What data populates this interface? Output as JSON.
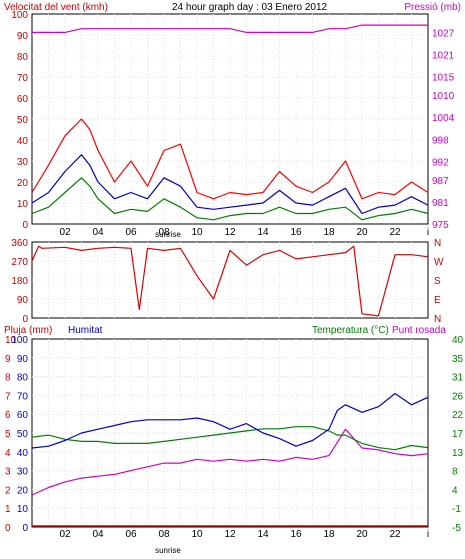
{
  "chart_data": [
    {
      "type": "line",
      "title": "24 hour graph day : 03 Enero 2012",
      "ylabel_left": "Velocitat del vent (kmh)",
      "ylabel_right": "Pressió (mb)",
      "x_ticks": [
        "02",
        "04",
        "06",
        "08",
        "10",
        "12",
        "14",
        "16",
        "18",
        "20",
        "22",
        "i"
      ],
      "x_annotation": "sunrise",
      "ylim_left": [
        0,
        100
      ],
      "yticks_left": [
        "0",
        "10",
        "20",
        "30",
        "40",
        "50",
        "60",
        "70",
        "80",
        "90",
        "100"
      ],
      "ylim_right": [
        975,
        1032
      ],
      "yticks_right": [
        "975",
        "981",
        "987",
        "992",
        "998",
        "1004",
        "1010",
        "1015",
        "1021",
        "1027"
      ],
      "grid": true,
      "colors": {
        "gust": "#ff0000",
        "average": "#0000cc",
        "speed": "#008000",
        "pressure": "#cc00cc",
        "axis_left": "#cc0000",
        "axis_right": "#cc00cc"
      },
      "x": [
        0,
        1,
        2,
        3,
        3.5,
        4,
        5,
        6,
        7,
        8,
        9,
        10,
        11,
        12,
        13,
        14,
        15,
        16,
        17,
        18,
        19,
        20,
        21,
        22,
        23,
        24
      ],
      "series": [
        {
          "values": [
            15,
            28,
            42,
            50,
            45,
            35,
            20,
            30,
            18,
            35,
            38,
            15,
            12,
            15,
            14,
            15,
            25,
            18,
            15,
            20,
            30,
            12,
            15,
            14,
            20,
            15
          ]
        },
        {
          "values": [
            10,
            15,
            25,
            33,
            28,
            20,
            12,
            15,
            12,
            22,
            18,
            8,
            7,
            8,
            9,
            10,
            16,
            10,
            9,
            13,
            17,
            5,
            8,
            9,
            13,
            9
          ]
        },
        {
          "values": [
            5,
            8,
            15,
            22,
            18,
            12,
            5,
            7,
            6,
            12,
            8,
            3,
            2,
            4,
            5,
            5,
            8,
            5,
            5,
            7,
            8,
            2,
            4,
            5,
            7,
            5
          ]
        },
        {
          "values": [
            1027,
            1027,
            1027,
            1028,
            1028,
            1028,
            1028,
            1028,
            1028,
            1028,
            1028,
            1028,
            1028,
            1028,
            1027,
            1027,
            1027,
            1027,
            1027,
            1028,
            1028,
            1029,
            1029,
            1029,
            1029,
            1029
          ]
        }
      ]
    },
    {
      "type": "line",
      "ylim": [
        0,
        360
      ],
      "yticks_left": [
        "0",
        "90",
        "180",
        "270",
        "360"
      ],
      "yticks_right": [
        "N",
        "E",
        "S",
        "W",
        "N"
      ],
      "colors": {
        "direction": "#dd0000"
      },
      "x": [
        0,
        0.4,
        0.6,
        2,
        3,
        4,
        5,
        6,
        6.5,
        7,
        8,
        9,
        10,
        11,
        12,
        13,
        14,
        15,
        16,
        17,
        18,
        19,
        19.5,
        20,
        21,
        22,
        23,
        24
      ],
      "series": [
        {
          "values": [
            270,
            340,
            330,
            335,
            320,
            330,
            335,
            330,
            40,
            330,
            320,
            330,
            200,
            90,
            320,
            250,
            300,
            320,
            280,
            290,
            300,
            310,
            340,
            20,
            10,
            300,
            300,
            290
          ]
        }
      ]
    },
    {
      "type": "line",
      "labels_left": [
        "Pluja (mm)",
        "Humitat"
      ],
      "labels_right": [
        "Temperatura (°C)",
        "Punt rosada"
      ],
      "yticks_rain": [
        "0",
        "1",
        "2",
        "3",
        "4",
        "5",
        "6",
        "7",
        "8",
        "9",
        "10"
      ],
      "yticks_humidity": [
        "0",
        "10",
        "20",
        "30",
        "40",
        "50",
        "60",
        "70",
        "80",
        "90",
        "100"
      ],
      "yticks_temp": [
        "-5",
        "-1",
        "4",
        "8",
        "13",
        "17",
        "22",
        "26",
        "31",
        "35",
        "40"
      ],
      "ylim_temp": [
        -5,
        40
      ],
      "x_ticks": [
        "02",
        "04",
        "06",
        "08",
        "10",
        "12",
        "14",
        "16",
        "18",
        "20",
        "22",
        "i"
      ],
      "x_annotation": "sunrise",
      "colors": {
        "rain": "#cc0000",
        "humidity": "#0000cc",
        "temperature": "#008000",
        "dewpoint": "#cc00cc"
      },
      "x": [
        0,
        1,
        2,
        3,
        4,
        5,
        6,
        7,
        8,
        9,
        10,
        11,
        12,
        13,
        14,
        15,
        16,
        17,
        18,
        18.5,
        19,
        20,
        21,
        22,
        23,
        24
      ],
      "series": [
        {
          "values": [
            0,
            0,
            0,
            0,
            0,
            0,
            0,
            0,
            0,
            0,
            0,
            0,
            0,
            0,
            0,
            0,
            0,
            0,
            0,
            0,
            0,
            0,
            0,
            0,
            0,
            0
          ]
        },
        {
          "values": [
            42,
            43,
            46,
            50,
            52,
            54,
            56,
            57,
            57,
            57,
            58,
            56,
            52,
            55,
            50,
            47,
            43,
            46,
            52,
            62,
            65,
            61,
            64,
            71,
            65,
            69
          ]
        },
        {
          "values": [
            16.5,
            17,
            16,
            15.5,
            15.5,
            15,
            15,
            15,
            15.5,
            16,
            16.5,
            17,
            17.5,
            18,
            18.5,
            18.5,
            19,
            19,
            18,
            17,
            17,
            15,
            14,
            13.5,
            14.5,
            14
          ]
        },
        {
          "values": [
            1.7,
            2.1,
            2.4,
            2.6,
            2.7,
            2.8,
            3.0,
            3.2,
            3.4,
            3.4,
            3.6,
            3.5,
            3.6,
            3.5,
            3.6,
            3.5,
            3.7,
            3.6,
            3.8,
            4.5,
            5.2,
            4.2,
            4.1,
            3.9,
            3.8,
            3.9
          ]
        }
      ]
    }
  ]
}
